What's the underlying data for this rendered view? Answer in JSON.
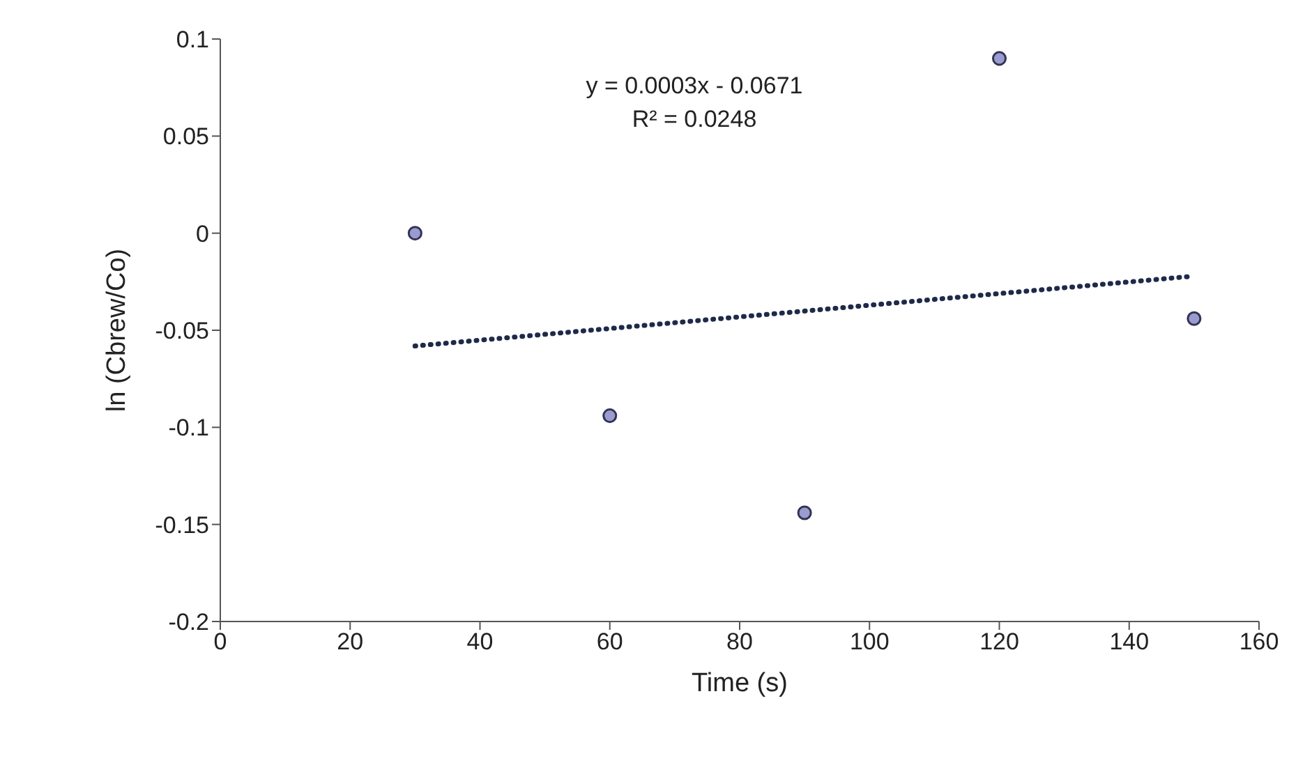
{
  "chart_data": {
    "type": "scatter",
    "xlabel": "Time (s)",
    "ylabel": "ln (Cbrew/Co)",
    "xlim": [
      0,
      160
    ],
    "xticks": [
      0,
      20,
      40,
      60,
      80,
      100,
      120,
      140,
      160
    ],
    "ylim": [
      -0.2,
      0.1
    ],
    "yticks": [
      -0.2,
      -0.15,
      -0.1,
      -0.05,
      0,
      0.05,
      0.1
    ],
    "grid": false,
    "legend": false,
    "marker": "circle",
    "series": [
      {
        "color": "#9a9ccf",
        "x": [
          30,
          60,
          90,
          120,
          150
        ],
        "values": [
          0,
          -0.094,
          -0.144,
          0.09,
          -0.044
        ]
      },
      {
        "type": "line",
        "color": "#1f2a4a",
        "line_style": "dotted",
        "marker": "none",
        "x": [
          30,
          150
        ],
        "values": [
          -0.0581,
          -0.0221
        ]
      }
    ],
    "annotations": [
      "y = 0.0003x - 0.0671",
      "R² = 0.0248"
    ]
  }
}
